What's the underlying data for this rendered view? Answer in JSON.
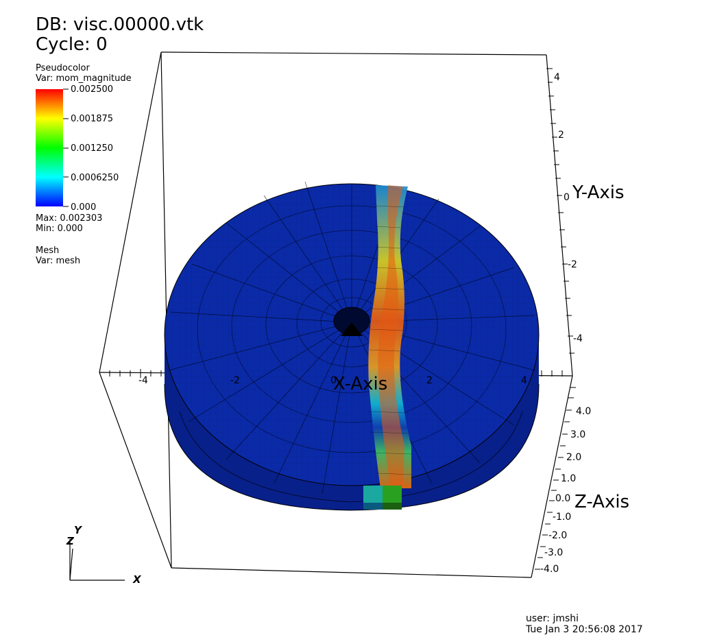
{
  "header": {
    "db": "DB: visc.00000.vtk",
    "cycle": "Cycle: 0"
  },
  "legend": {
    "plot_type": "Pseudocolor",
    "var": "Var: mom_magnitude",
    "ticks": [
      "0.002500",
      "0.001875",
      "0.001250",
      "0.0006250",
      "0.000"
    ],
    "max": "Max:  0.002303",
    "min": "Min:  0.000",
    "colors": [
      "#ff0000",
      "#ffff00",
      "#00ff00",
      "#00ffff",
      "#0000ff"
    ]
  },
  "mesh": {
    "plot_type": "Mesh",
    "var": "Var: mesh"
  },
  "axes": {
    "x_title": "X-Axis",
    "y_title": "Y-Axis",
    "z_title": "Z-Axis",
    "x_ticks": [
      "-4",
      "-2",
      "0",
      "2",
      "4"
    ],
    "y_ticks": [
      "4",
      "2",
      "0",
      "-2",
      "-4"
    ],
    "z_ticks": [
      "4.0",
      "3.0",
      "2.0",
      "1.0",
      "0.0",
      "-1.0",
      "-2.0",
      "-3.0",
      "-4.0"
    ]
  },
  "triad": {
    "x": "X",
    "y": "Y",
    "z": "Z"
  },
  "footer": {
    "user": "user: jmshi",
    "date": "Tue Jan  3 20:56:08 2017"
  },
  "colors": {
    "disk": "#0a2aa8",
    "disk_side": "#08208a",
    "band_hot": "#e85a10"
  }
}
